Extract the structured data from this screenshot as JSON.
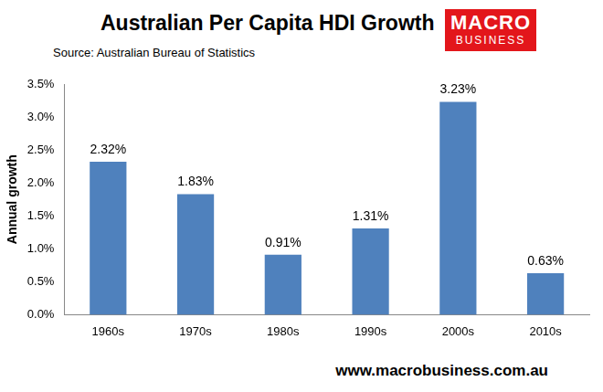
{
  "chart_data": {
    "type": "bar",
    "title": "Australian Per Capita HDI Growth",
    "subtitle": "Source: Australian Bureau of Statistics",
    "y_label": "Annual growth",
    "annotations": [
      "MACRO",
      "BUSINESS",
      "www.macrobusiness.com.au"
    ],
    "categories": [
      "1960s",
      "1970s",
      "1980s",
      "1990s",
      "2000s",
      "2010s"
    ],
    "values": [
      2.32,
      1.83,
      0.91,
      1.31,
      3.23,
      0.63
    ],
    "value_labels": [
      "2.32%",
      "1.83%",
      "0.91%",
      "1.31%",
      "3.23%",
      "0.63%"
    ],
    "data_labels": true,
    "color": "#4f81bd",
    "ylim": [
      0,
      3.5
    ],
    "yticks": [
      {
        "value": 0,
        "label": "0.0%"
      },
      {
        "value": 0.5,
        "label": "0.5%"
      },
      {
        "value": 1,
        "label": "1.0%"
      },
      {
        "value": 1.5,
        "label": "1.5%"
      },
      {
        "value": 2,
        "label": "2.0%"
      },
      {
        "value": 2.5,
        "label": "2.5%"
      },
      {
        "value": 3,
        "label": "3.0%"
      },
      {
        "value": 3.5,
        "label": "3.5%"
      }
    ],
    "grid": false
  }
}
